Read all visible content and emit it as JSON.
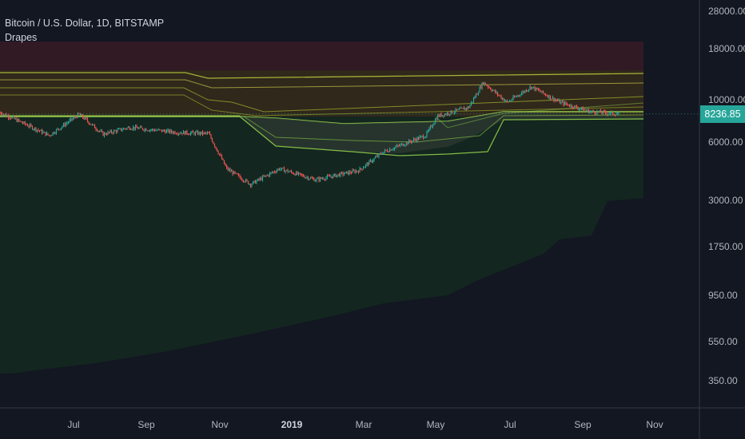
{
  "header": {
    "symbol_line": "Bitcoin / U.S. Dollar, 1D, BITSTAMP",
    "indicator": "Drapes"
  },
  "last_price": "8236.85",
  "colors": {
    "background": "#131722",
    "up": "#26a69a",
    "down": "#ef5350",
    "price_tag": "#26a69a",
    "axis_text": "#b2b5be",
    "axis_line": "#363a45",
    "zone_red": "#4a1e26",
    "zone_orange": "#3d3118",
    "zone_green": "#14281f",
    "band_lines": "#a4b82c",
    "channel_fill": "#2d3a33"
  },
  "chart_data": {
    "type": "candlestick",
    "title": "Bitcoin / U.S. Dollar, 1D, BITSTAMP",
    "y_scale": "log",
    "ylim": [
      240,
      32000
    ],
    "y_ticks": [
      "28000.00",
      "18000.00",
      "10000.00",
      "6000.00",
      "3000.00",
      "1750.00",
      "950.00",
      "550.00",
      "350.00"
    ],
    "x_ticks": [
      "Jul",
      "Sep",
      "Nov",
      "2019",
      "Mar",
      "May",
      "Jul",
      "Sep",
      "Nov"
    ],
    "price_path_approx": [
      {
        "date": "2018-05-20",
        "close": 8400
      },
      {
        "date": "2018-06-10",
        "close": 7200
      },
      {
        "date": "2018-06-30",
        "close": 6200
      },
      {
        "date": "2018-07-25",
        "close": 8200
      },
      {
        "date": "2018-08-14",
        "close": 6300
      },
      {
        "date": "2018-09-05",
        "close": 6900
      },
      {
        "date": "2018-10-15",
        "close": 6450
      },
      {
        "date": "2018-11-10",
        "close": 6350
      },
      {
        "date": "2018-11-25",
        "close": 4000
      },
      {
        "date": "2018-12-15",
        "close": 3250
      },
      {
        "date": "2019-01-08",
        "close": 4000
      },
      {
        "date": "2019-02-07",
        "close": 3450
      },
      {
        "date": "2019-03-15",
        "close": 3900
      },
      {
        "date": "2019-04-05",
        "close": 5000
      },
      {
        "date": "2019-05-10",
        "close": 6200
      },
      {
        "date": "2019-05-20",
        "close": 8000
      },
      {
        "date": "2019-06-15",
        "close": 9000
      },
      {
        "date": "2019-06-27",
        "close": 12500
      },
      {
        "date": "2019-07-17",
        "close": 9600
      },
      {
        "date": "2019-08-06",
        "close": 11800
      },
      {
        "date": "2019-08-30",
        "close": 9600
      },
      {
        "date": "2019-09-24",
        "close": 8500
      },
      {
        "date": "2019-10-18",
        "close": 8236.85
      }
    ],
    "drapes_bands": [
      "red zone",
      "orange zone",
      "green zone",
      "band lines",
      "channel"
    ]
  }
}
